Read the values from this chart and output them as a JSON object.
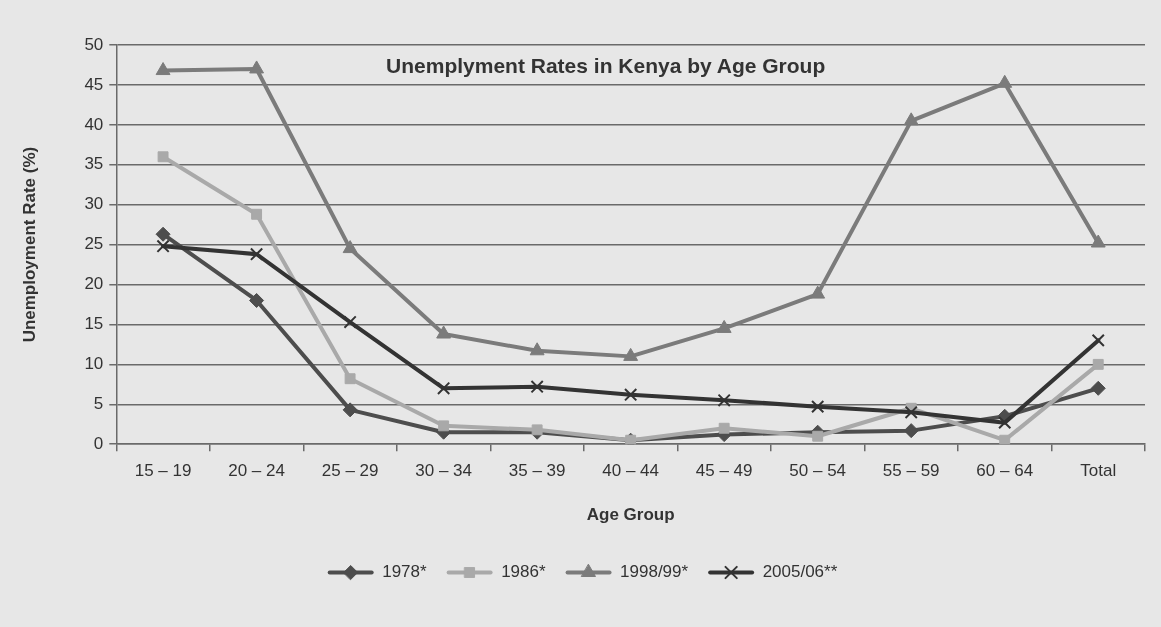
{
  "chart_data": {
    "type": "line",
    "title": "Unemplyment Rates in Kenya by Age Group",
    "xlabel": "Age Group",
    "ylabel": "Unemployment Rate (%)",
    "categories": [
      "15 – 19",
      "20 – 24",
      "25 – 29",
      "30 – 34",
      "35 – 39",
      "40 – 44",
      "45 – 49",
      "50 – 54",
      "55 – 59",
      "60 – 64",
      "Total"
    ],
    "series": [
      {
        "name": "1978*",
        "color": "#4d4d4d",
        "marker": "diamond",
        "values": [
          26.3,
          18.0,
          4.3,
          1.5,
          1.5,
          0.5,
          1.2,
          1.5,
          1.7,
          3.5,
          7.0
        ]
      },
      {
        "name": "1986*",
        "color": "#a9a9a9",
        "marker": "square",
        "values": [
          36.0,
          28.8,
          8.2,
          2.3,
          1.8,
          0.5,
          2.0,
          1.0,
          4.5,
          0.5,
          10.0
        ]
      },
      {
        "name": "1998/99*",
        "color": "#7b7b7b",
        "marker": "triangle",
        "values": [
          46.8,
          47.0,
          24.5,
          13.8,
          11.7,
          11.0,
          14.5,
          18.8,
          40.5,
          45.2,
          25.2
        ]
      },
      {
        "name": "2005/06**",
        "color": "#333333",
        "marker": "cross",
        "values": [
          24.8,
          23.8,
          15.3,
          7.0,
          7.2,
          6.2,
          5.5,
          4.7,
          4.0,
          2.7,
          13.0
        ]
      }
    ],
    "ylim": [
      0,
      50
    ],
    "yticks": [
      0,
      5,
      10,
      15,
      20,
      25,
      30,
      35,
      40,
      45,
      50
    ],
    "grid": "y",
    "legend": "bottom",
    "line_style": "solid"
  }
}
